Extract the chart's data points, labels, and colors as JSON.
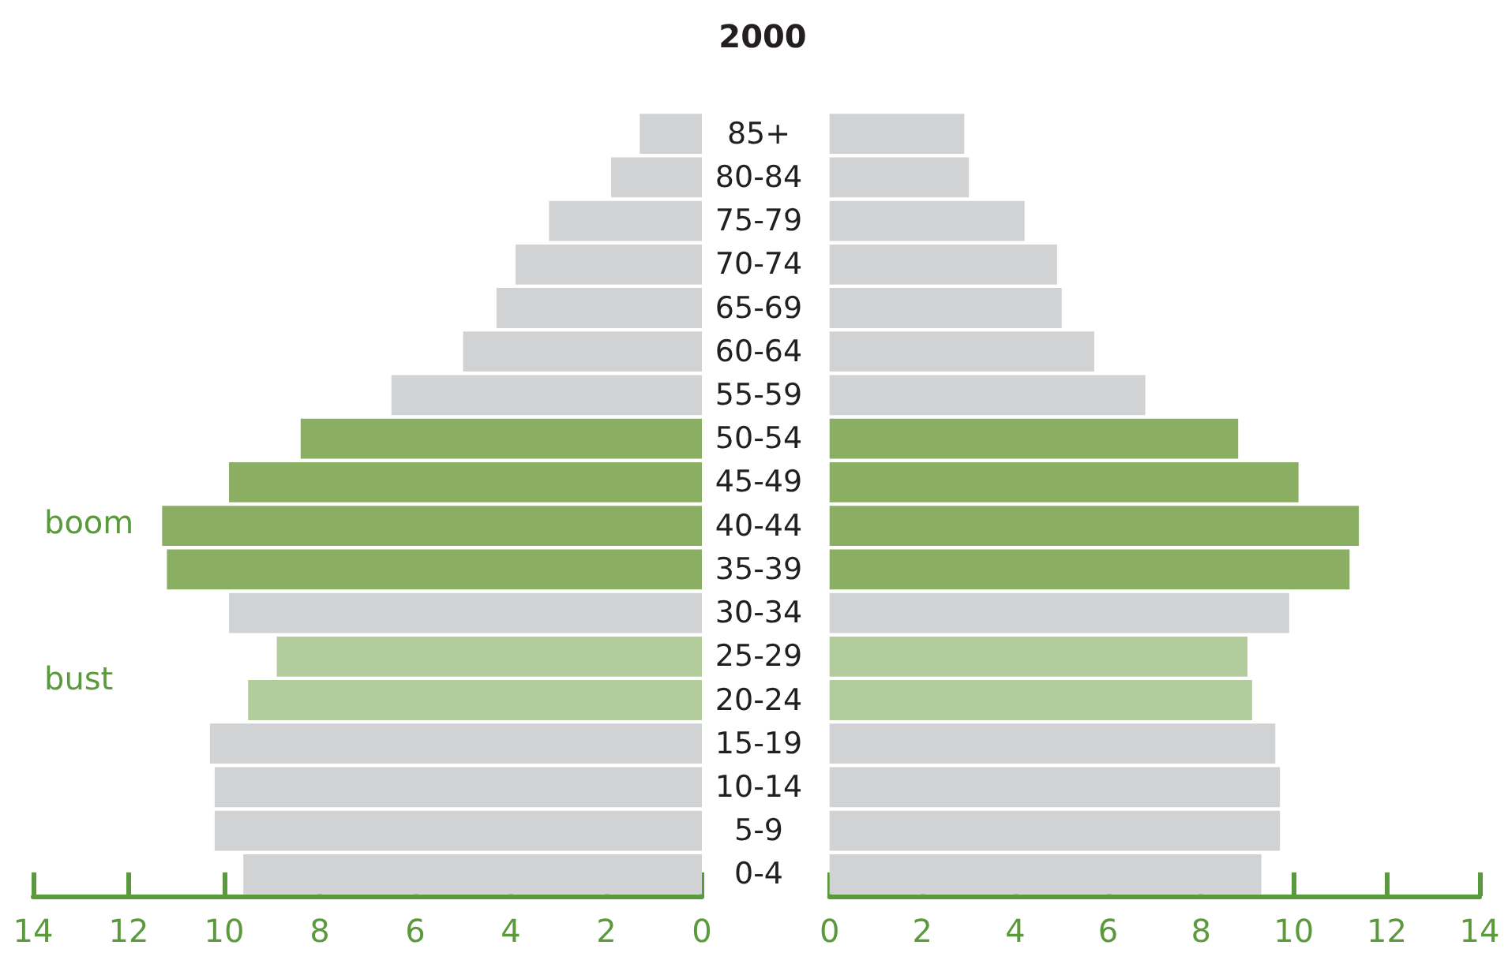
{
  "chart_data": [
    {
      "type": "bar",
      "orientation": "horizontal",
      "title": "2000",
      "categories": [
        "85+",
        "80-84",
        "75-79",
        "70-74",
        "65-69",
        "60-64",
        "55-59",
        "50-54",
        "45-49",
        "40-44",
        "35-39",
        "30-34",
        "25-29",
        "20-24",
        "15-19",
        "10-14",
        "5-9",
        "0-4"
      ],
      "series": [
        {
          "values": [
            1.3,
            1.9,
            3.2,
            3.9,
            4.3,
            5.0,
            6.5,
            8.4,
            9.9,
            11.3,
            11.2,
            9.9,
            8.9,
            9.5,
            10.3,
            10.2,
            10.2,
            9.6
          ],
          "colors": [
            "#d1d2d4",
            "#d1d2d4",
            "#d1d2d4",
            "#d1d2d4",
            "#d1d2d4",
            "#d1d2d4",
            "#d1d2d4",
            "#8aae62",
            "#8aae62",
            "#8aae62",
            "#8aae62",
            "#d1d2d4",
            "#b3cc9c",
            "#b3cc9c",
            "#d1d2d4",
            "#d1d2d4",
            "#d1d2d4",
            "#d1d2d4"
          ]
        }
      ],
      "xlim": [
        14,
        0
      ],
      "xticks": [
        14,
        12,
        10,
        8,
        6,
        4,
        2,
        0
      ],
      "grid": false,
      "annotations": [
        "boom",
        "bust"
      ]
    },
    {
      "type": "bar",
      "orientation": "horizontal",
      "categories": [
        null,
        null,
        null,
        null,
        null,
        null,
        null,
        null,
        null,
        null,
        null,
        null,
        null,
        null,
        null,
        null,
        null,
        null
      ],
      "series": [
        {
          "values": [
            2.9,
            3.0,
            4.2,
            4.9,
            5.0,
            5.7,
            6.8,
            8.8,
            10.1,
            11.4,
            11.2,
            9.9,
            9.0,
            9.1,
            9.6,
            9.7,
            9.7,
            9.3
          ],
          "colors": [
            "#d1d2d4",
            "#d1d2d4",
            "#d1d2d4",
            "#d1d2d4",
            "#d1d2d4",
            "#d1d2d4",
            "#d1d2d4",
            "#8aae62",
            "#8aae62",
            "#8aae62",
            "#8aae62",
            "#d1d2d4",
            "#b3cc9c",
            "#b3cc9c",
            "#d1d2d4",
            "#d1d2d4",
            "#d1d2d4",
            "#d1d2d4"
          ]
        }
      ],
      "xlim": [
        0,
        14
      ],
      "xticks": [
        0,
        2,
        4,
        6,
        8,
        10,
        12,
        14
      ],
      "grid": false,
      "tick_labels": "x"
    }
  ]
}
